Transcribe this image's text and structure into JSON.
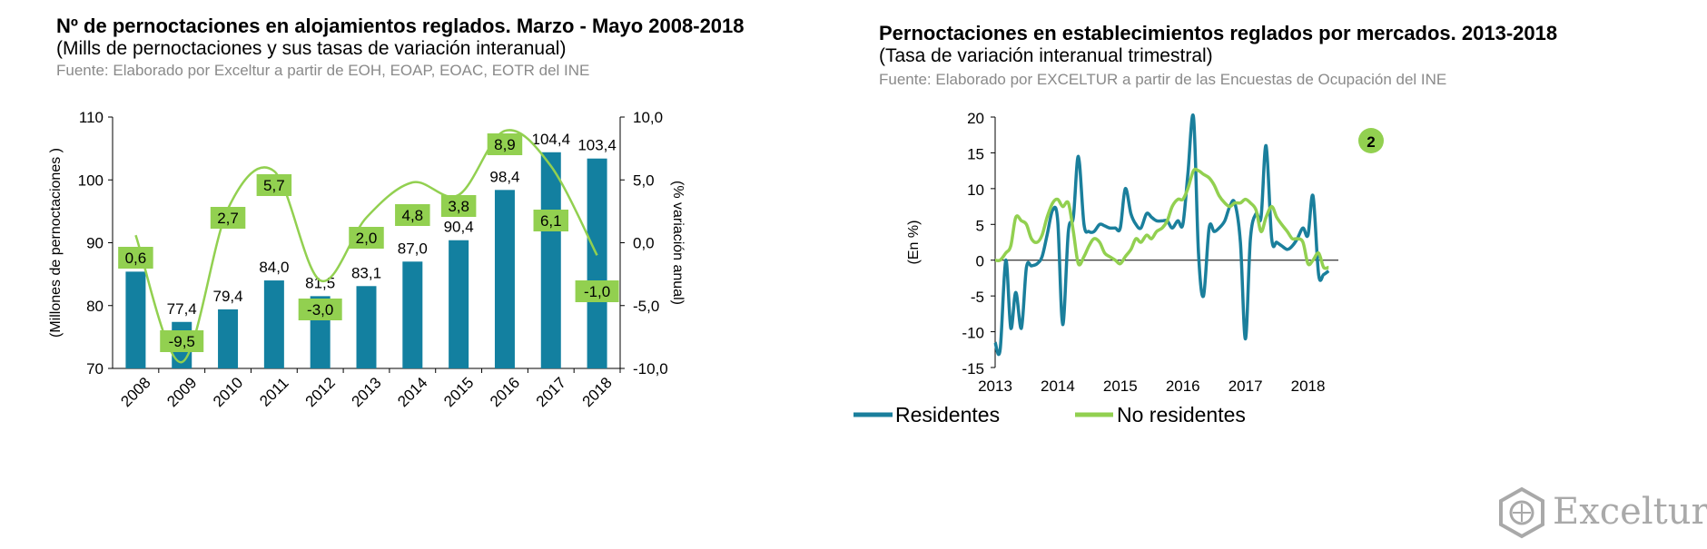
{
  "left": {
    "title": "Nº de pernoctaciones en alojamientos reglados. Marzo - Mayo 2008-2018",
    "subtitle": "(Mills de pernoctaciones y sus tasas de variación interanual)",
    "source": "Fuente:  Elaborado por Exceltur a partir de EOH, EOAP, EOAC, EOTR del INE"
  },
  "right": {
    "title": "Pernoctaciones en establecimientos reglados por mercados. 2013-2018",
    "subtitle": "(Tasa de variación interanual trimestral)",
    "source": "Fuente:  Elaborado por EXCELTUR a partir de las Encuestas de Ocupación del INE",
    "badge": "2"
  },
  "logo": {
    "text": "Exceltur"
  },
  "colors": {
    "bar": "#1380a0",
    "residentes": "#1a7f9c",
    "no_residentes": "#92d050",
    "label_bg": "#92d050",
    "axis": "#000000",
    "source_text": "#8a8a8a"
  },
  "chart_data": [
    {
      "type": "bar",
      "categories": [
        "2008",
        "2009",
        "2010",
        "2011",
        "2012",
        "2013",
        "2014",
        "2015",
        "2016",
        "2017",
        "2018"
      ],
      "ylabel": "(Millones de pernoctaciones )",
      "y2label": "(% variación anual)",
      "ylim": [
        70,
        110
      ],
      "yticks": [
        "70",
        "80",
        "90",
        "100",
        "110"
      ],
      "y2lim": [
        -10,
        10
      ],
      "y2ticks": [
        "-10,0",
        "-5,0",
        "0,0",
        "5,0",
        "10,0"
      ],
      "series": [
        {
          "type": "bar",
          "values": [
            85.4,
            77.4,
            79.4,
            84.0,
            81.5,
            83.1,
            87.0,
            90.4,
            98.4,
            104.4,
            103.4
          ],
          "labels": [
            "",
            "77,4",
            "79,4",
            "84,0",
            "81,5",
            "83,1",
            "87,0",
            "90,4",
            "98,4",
            "104,4",
            "103,4"
          ]
        },
        {
          "type": "line",
          "axis": "secondary",
          "values": [
            0.6,
            -9.5,
            2.7,
            5.7,
            -3.0,
            2.0,
            4.8,
            3.8,
            8.9,
            6.1,
            -1.0
          ],
          "labels": [
            "0,6",
            "-9,5",
            "2,7",
            "5,7",
            "-3,0",
            "2,0",
            "4,8",
            "3,8",
            "8,9",
            "6,1",
            "-1,0"
          ]
        }
      ],
      "grid": false
    },
    {
      "type": "line",
      "ylabel": "(En %)",
      "ylim": [
        -15,
        20
      ],
      "yticks": [
        "-15",
        "-10",
        "-5",
        "0",
        "5",
        "10",
        "15",
        "20"
      ],
      "xticks": [
        "2013",
        "2014",
        "2015",
        "2016",
        "2017",
        "2018"
      ],
      "x_range": [
        2013.0,
        2018.5
      ],
      "legend": "bottom",
      "grid": false,
      "series": [
        {
          "name": "Residentes",
          "x": [
            2013.0,
            2013.08,
            2013.17,
            2013.25,
            2013.33,
            2013.42,
            2013.5,
            2013.58,
            2013.67,
            2013.75,
            2013.83,
            2013.92,
            2014.0,
            2014.08,
            2014.17,
            2014.25,
            2014.33,
            2014.42,
            2014.5,
            2014.58,
            2014.67,
            2014.75,
            2014.83,
            2014.92,
            2015.0,
            2015.08,
            2015.17,
            2015.25,
            2015.33,
            2015.42,
            2015.5,
            2015.58,
            2015.67,
            2015.75,
            2015.83,
            2015.92,
            2016.0,
            2016.08,
            2016.17,
            2016.25,
            2016.33,
            2016.42,
            2016.5,
            2016.58,
            2016.67,
            2016.75,
            2016.83,
            2016.92,
            2017.0,
            2017.08,
            2017.17,
            2017.25,
            2017.33,
            2017.42,
            2017.5,
            2017.58,
            2017.67,
            2017.75,
            2017.83,
            2017.92,
            2018.0,
            2018.08,
            2018.17,
            2018.25,
            2018.33
          ],
          "y": [
            -11.5,
            -12.5,
            0.0,
            -9.5,
            -4.5,
            -9.5,
            -1.0,
            -0.8,
            -0.5,
            0.5,
            3.5,
            7.0,
            5.5,
            -9.0,
            4.0,
            6.0,
            14.5,
            5.0,
            4.0,
            4.0,
            5.0,
            4.8,
            4.5,
            4.5,
            4.5,
            10.0,
            6.5,
            5.0,
            4.5,
            6.5,
            6.0,
            5.5,
            5.5,
            5.5,
            4.5,
            5.5,
            5.0,
            12.0,
            20.0,
            1.0,
            -5.0,
            4.5,
            4.0,
            4.5,
            5.5,
            7.5,
            8.0,
            2.5,
            -11.0,
            3.0,
            6.5,
            6.0,
            16.0,
            3.0,
            2.5,
            2.0,
            1.5,
            2.0,
            3.0,
            4.5,
            3.5,
            9.0,
            -2.0,
            -2.0,
            -1.5
          ]
        },
        {
          "name": "No residentes",
          "x": [
            2013.0,
            2013.08,
            2013.17,
            2013.25,
            2013.33,
            2013.42,
            2013.5,
            2013.58,
            2013.67,
            2013.75,
            2013.83,
            2013.92,
            2014.0,
            2014.08,
            2014.17,
            2014.25,
            2014.33,
            2014.42,
            2014.5,
            2014.58,
            2014.67,
            2014.75,
            2014.83,
            2014.92,
            2015.0,
            2015.08,
            2015.17,
            2015.25,
            2015.33,
            2015.42,
            2015.5,
            2015.58,
            2015.67,
            2015.75,
            2015.83,
            2015.92,
            2016.0,
            2016.08,
            2016.17,
            2016.25,
            2016.33,
            2016.42,
            2016.5,
            2016.58,
            2016.67,
            2016.75,
            2016.83,
            2016.92,
            2017.0,
            2017.08,
            2017.17,
            2017.25,
            2017.33,
            2017.42,
            2017.5,
            2017.58,
            2017.67,
            2017.75,
            2017.83,
            2017.92,
            2018.0,
            2018.08,
            2018.17,
            2018.25,
            2018.33
          ],
          "y": [
            0.0,
            0.0,
            1.0,
            2.0,
            6.0,
            5.5,
            5.0,
            3.0,
            2.5,
            3.5,
            6.0,
            8.0,
            8.5,
            7.5,
            8.0,
            4.0,
            -0.5,
            0.5,
            2.0,
            3.0,
            2.5,
            1.0,
            0.5,
            0.0,
            -0.5,
            0.5,
            1.5,
            3.0,
            2.5,
            3.5,
            3.0,
            4.0,
            4.5,
            5.5,
            7.5,
            8.5,
            8.5,
            10.0,
            12.5,
            12.5,
            12.0,
            11.5,
            10.5,
            9.0,
            8.0,
            7.5,
            8.0,
            8.0,
            8.5,
            8.0,
            7.0,
            4.0,
            6.0,
            7.5,
            6.0,
            5.0,
            4.0,
            3.0,
            3.0,
            2.5,
            -0.5,
            0.0,
            1.0,
            -1.0,
            -1.0
          ]
        }
      ]
    }
  ]
}
